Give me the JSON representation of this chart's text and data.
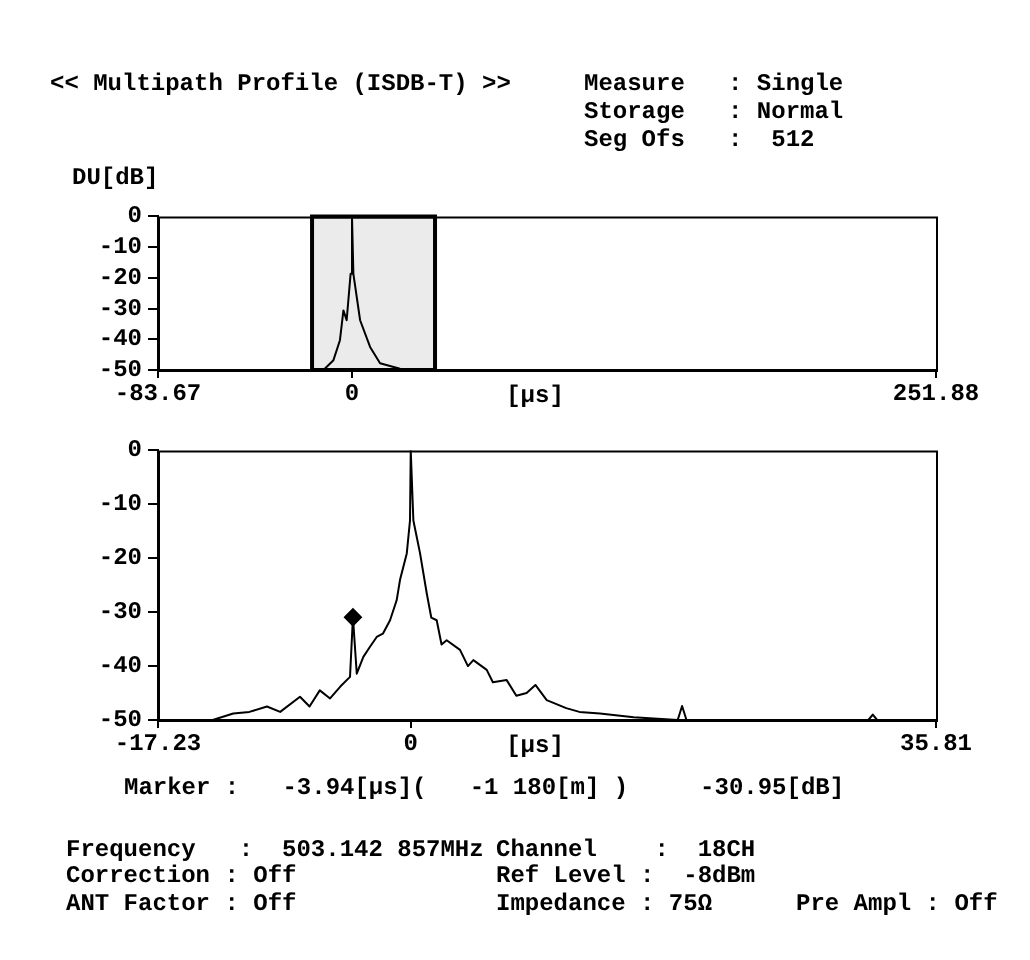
{
  "chart_data": [
    {
      "type": "line",
      "title": "<< Multipath Profile (ISDB-T) >>",
      "ylabel": "DU[dB]",
      "xlabel": "[μs]",
      "annotations": [
        "Measure   : Single",
        "Storage   : Normal",
        "Seg Ofs   :  512"
      ],
      "series": [
        {
          "color": "#000000",
          "x": [
            -83.67,
            -12.3,
            -8,
            -5.2,
            -3.7,
            -2.3,
            -0.6,
            0,
            0.6,
            3.5,
            7.8,
            12.1,
            20.7,
            32.2,
            251.88
          ],
          "values": [
            -50,
            -50,
            -46.8,
            -40.3,
            -30.6,
            -33.8,
            -18.7,
            0,
            -18.7,
            -33.8,
            -42.5,
            -47.8,
            -49.6,
            -50,
            -50
          ]
        }
      ],
      "xlim": [
        -83.67,
        251.88
      ],
      "xticks": [
        -83.67,
        0,
        251.88
      ],
      "ylim": [
        -50,
        0
      ],
      "yticks": [
        0,
        -10,
        -20,
        -30,
        -40,
        -50
      ],
      "bands": [
        {
          "axis": "x",
          "from": -17.23,
          "to": 35.81,
          "color": "#000000"
        }
      ],
      "grid": false,
      "legend": false
    },
    {
      "type": "line",
      "xlabel": "[μs]",
      "annotations": [
        "Marker :   -3.94[μs](   -1 180[m] )     -30.95[dB]",
        "Frequency   :  503.142 857MHz",
        "Channel    :  18CH",
        "Correction : Off",
        "Ref Level :  -8dBm",
        "ANT Factor : Off",
        "Impedance : 75Ω",
        "Pre Ampl : Off"
      ],
      "series": [
        {
          "color": "#000000",
          "x": [
            -17.23,
            -13.5,
            -12.1,
            -11,
            -9.8,
            -8.9,
            -7.55,
            -6.9,
            -6.2,
            -5.5,
            -4.8,
            -4.14,
            -3.94,
            -3.68,
            -3.23,
            -2.8,
            -2.32,
            -1.9,
            -1.41,
            -0.96,
            -0.73,
            -0.27,
            -0.05,
            0,
            0.18,
            0.63,
            1.09,
            1.4,
            1.77,
            2.1,
            2.45,
            3.36,
            3.9,
            4.27,
            5.18,
            5.6,
            6.54,
            7.2,
            7.9,
            8.5,
            9.27,
            10.6,
            11.5,
            12.9,
            15.2,
            18.2,
            18.5,
            18.8,
            22,
            31.2,
            31.5,
            31.8,
            35.81
          ],
          "values": [
            -50,
            -50,
            -48.8,
            -48.5,
            -47.5,
            -48.5,
            -45.7,
            -47.5,
            -44.5,
            -46,
            -43.8,
            -42,
            -30.95,
            -41.4,
            -38.3,
            -36.5,
            -34.6,
            -34,
            -31.5,
            -27.8,
            -24,
            -19.1,
            -13,
            0,
            -13,
            -19,
            -26.5,
            -31,
            -31.5,
            -36,
            -35.2,
            -37,
            -40,
            -38.9,
            -40.7,
            -43,
            -42.6,
            -45.5,
            -45,
            -43.5,
            -46.3,
            -47.8,
            -48.5,
            -48.8,
            -49.5,
            -50,
            -47.4,
            -50,
            -50,
            -50,
            -49,
            -50,
            -50
          ]
        },
        {
          "type": "scatter",
          "color": "#000000",
          "marker": "diamond",
          "x": [
            -3.94
          ],
          "values": [
            -30.95
          ]
        }
      ],
      "xlim": [
        -17.23,
        35.81
      ],
      "xticks": [
        -17.23,
        0,
        35.81
      ],
      "ylim": [
        -50,
        0
      ],
      "yticks": [
        0,
        -10,
        -20,
        -30,
        -40,
        -50
      ],
      "grid": false,
      "legend": false
    }
  ]
}
